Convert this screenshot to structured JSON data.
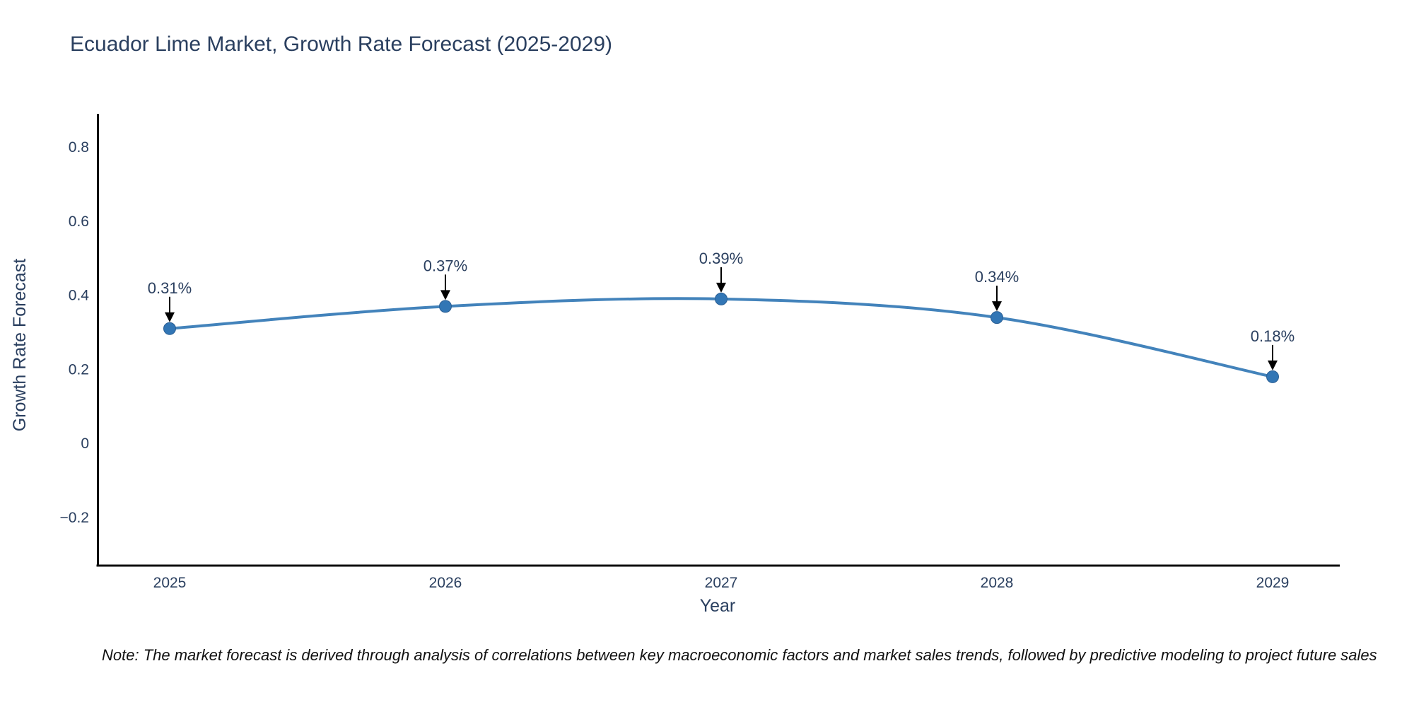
{
  "title": "Ecuador Lime Market, Growth Rate Forecast (2025-2029)",
  "note": "Note: The market forecast is derived through analysis of correlations between key macroeconomic factors and market sales trends, followed by predictive modeling to project future sales",
  "colors": {
    "heading": "#2a3f5f",
    "tick_label": "#2a3f5f",
    "axis_line": "#0d0d0d",
    "annotation_text": "#2a3f5f",
    "annotation_arrow": "#000000",
    "line": "#4383bb",
    "marker": "#3276b5",
    "background": "#ffffff"
  },
  "chart_data": {
    "type": "line",
    "title": "Ecuador Lime Market, Growth Rate Forecast (2025-2029)",
    "xlabel": "Year",
    "ylabel": "Growth Rate Forecast",
    "x": [
      2025,
      2026,
      2027,
      2028,
      2029
    ],
    "x_tick_labels": [
      "2025",
      "2026",
      "2027",
      "2028",
      "2029"
    ],
    "y": [
      0.31,
      0.37,
      0.39,
      0.34,
      0.18
    ],
    "point_labels": [
      "0.31%",
      "0.37%",
      "0.39%",
      "0.34%",
      "0.18%"
    ],
    "y_ticks": [
      0.8,
      0.6,
      0.4,
      0.2,
      0,
      -0.2
    ],
    "y_tick_labels": [
      "0.8",
      "0.6",
      "0.4",
      "0.2",
      "0",
      "−0.2"
    ],
    "ylim": [
      -0.33,
      0.89
    ],
    "line_shape": "spline",
    "grid": false,
    "legend": false,
    "markers": true,
    "annotations": "value labels with down arrows above each point"
  }
}
